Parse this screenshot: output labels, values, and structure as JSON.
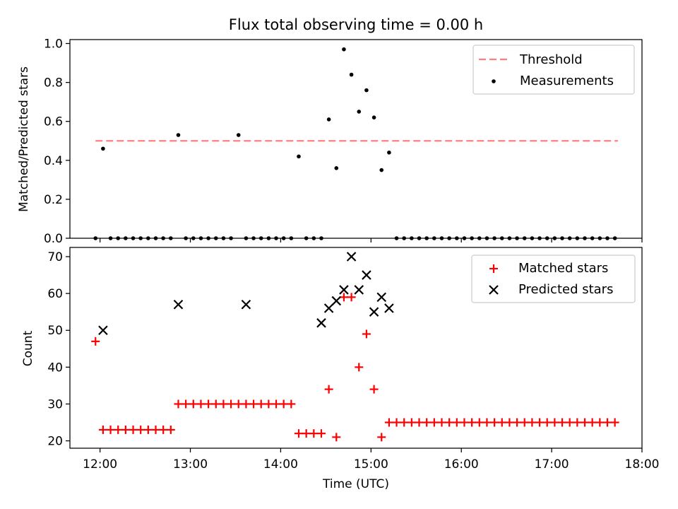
{
  "chart_data": [
    {
      "type": "scatter",
      "title": "Flux total observing time = 0.00 h",
      "xlabel": "",
      "ylabel": "Matched/Predicted stars",
      "xlim": [
        "11:40",
        "18:00"
      ],
      "ylim": [
        0,
        1.02
      ],
      "yticks": [
        0.0,
        0.2,
        0.4,
        0.6,
        0.8,
        1.0
      ],
      "ytick_labels": [
        "0.0",
        "0.2",
        "0.4",
        "0.6",
        "0.8",
        "1.0"
      ],
      "legend_position": "upper-right",
      "threshold": {
        "name": "Threshold",
        "value": 0.5,
        "x_range": [
          "11:57",
          "17:44"
        ],
        "color": "#ff7f7f"
      },
      "series": [
        {
          "name": "Measurements",
          "color": "#000000",
          "x": [
            "11:57",
            "12:02",
            "12:07",
            "12:12",
            "12:17",
            "12:22",
            "12:27",
            "12:32",
            "12:37",
            "12:42",
            "12:47",
            "12:52",
            "12:57",
            "13:02",
            "13:07",
            "13:12",
            "13:17",
            "13:22",
            "13:27",
            "13:32",
            "13:37",
            "13:42",
            "13:47",
            "13:52",
            "13:57",
            "14:02",
            "14:07",
            "14:12",
            "14:17",
            "14:22",
            "14:27",
            "14:32",
            "14:37",
            "14:42",
            "14:47",
            "14:52",
            "14:57",
            "15:02",
            "15:07",
            "15:12",
            "15:17",
            "15:22",
            "15:27",
            "15:32",
            "15:37",
            "15:42",
            "15:47",
            "15:52",
            "15:57",
            "16:02",
            "16:07",
            "16:12",
            "16:17",
            "16:22",
            "16:27",
            "16:32",
            "16:37",
            "16:42",
            "16:47",
            "16:52",
            "16:57",
            "17:02",
            "17:07",
            "17:12",
            "17:17",
            "17:22",
            "17:27",
            "17:32",
            "17:37",
            "17:42"
          ],
          "y": [
            0.0,
            0.46,
            0.0,
            0.0,
            0.0,
            0.0,
            0.0,
            0.0,
            0.0,
            0.0,
            0.0,
            0.53,
            0.0,
            0.0,
            0.0,
            0.0,
            0.0,
            0.0,
            0.0,
            0.53,
            0.0,
            0.0,
            0.0,
            0.0,
            0.0,
            0.0,
            0.0,
            0.42,
            0.0,
            0.0,
            0.0,
            0.61,
            0.36,
            0.97,
            0.84,
            0.65,
            0.76,
            0.62,
            0.35,
            0.44,
            0.0,
            0.0,
            0.0,
            0.0,
            0.0,
            0.0,
            0.0,
            0.0,
            0.0,
            0.0,
            0.0,
            0.0,
            0.0,
            0.0,
            0.0,
            0.0,
            0.0,
            0.0,
            0.0,
            0.0,
            0.0,
            0.0,
            0.0,
            0.0,
            0.0,
            0.0,
            0.0,
            0.0,
            0.0,
            0.0
          ]
        }
      ]
    },
    {
      "type": "scatter",
      "title": "",
      "xlabel": "Time (UTC)",
      "ylabel": "Count",
      "xlim": [
        "11:40",
        "18:00"
      ],
      "ylim": [
        18,
        72.5
      ],
      "yticks": [
        20,
        30,
        40,
        50,
        60,
        70
      ],
      "ytick_labels": [
        "20",
        "30",
        "40",
        "50",
        "60",
        "70"
      ],
      "xticks": [
        "12:00",
        "13:00",
        "14:00",
        "15:00",
        "16:00",
        "17:00",
        "18:00"
      ],
      "legend_position": "upper-right",
      "series": [
        {
          "name": "Matched stars",
          "marker": "+",
          "color": "#ff0000",
          "x": [
            "11:57",
            "12:02",
            "12:07",
            "12:12",
            "12:17",
            "12:22",
            "12:27",
            "12:32",
            "12:37",
            "12:42",
            "12:47",
            "12:52",
            "12:57",
            "13:02",
            "13:07",
            "13:12",
            "13:17",
            "13:22",
            "13:27",
            "13:32",
            "13:37",
            "13:42",
            "13:47",
            "13:52",
            "13:57",
            "14:02",
            "14:07",
            "14:12",
            "14:17",
            "14:22",
            "14:27",
            "14:32",
            "14:37",
            "14:42",
            "14:47",
            "14:52",
            "14:57",
            "15:02",
            "15:07",
            "15:12",
            "15:17",
            "15:22",
            "15:27",
            "15:32",
            "15:37",
            "15:42",
            "15:47",
            "15:52",
            "15:57",
            "16:02",
            "16:07",
            "16:12",
            "16:17",
            "16:22",
            "16:27",
            "16:32",
            "16:37",
            "16:42",
            "16:47",
            "16:52",
            "16:57",
            "17:02",
            "17:07",
            "17:12",
            "17:17",
            "17:22",
            "17:27",
            "17:32",
            "17:37",
            "17:42"
          ],
          "y": [
            47,
            23,
            23,
            23,
            23,
            23,
            23,
            23,
            23,
            23,
            23,
            30,
            30,
            30,
            30,
            30,
            30,
            30,
            30,
            30,
            30,
            30,
            30,
            30,
            30,
            30,
            30,
            22,
            22,
            22,
            22,
            34,
            21,
            59,
            59,
            40,
            49,
            34,
            21,
            25,
            25,
            25,
            25,
            25,
            25,
            25,
            25,
            25,
            25,
            25,
            25,
            25,
            25,
            25,
            25,
            25,
            25,
            25,
            25,
            25,
            25,
            25,
            25,
            25,
            25,
            25,
            25,
            25,
            25,
            25
          ]
        },
        {
          "name": "Predicted stars",
          "marker": "x",
          "color": "#000000",
          "x": [
            "12:02",
            "12:52",
            "13:37",
            "14:27",
            "14:32",
            "14:37",
            "14:42",
            "14:47",
            "14:52",
            "14:57",
            "15:02",
            "15:07",
            "15:12"
          ],
          "y": [
            50,
            57,
            57,
            52,
            56,
            58,
            61,
            70,
            61,
            65,
            55,
            59,
            56
          ]
        }
      ]
    }
  ]
}
